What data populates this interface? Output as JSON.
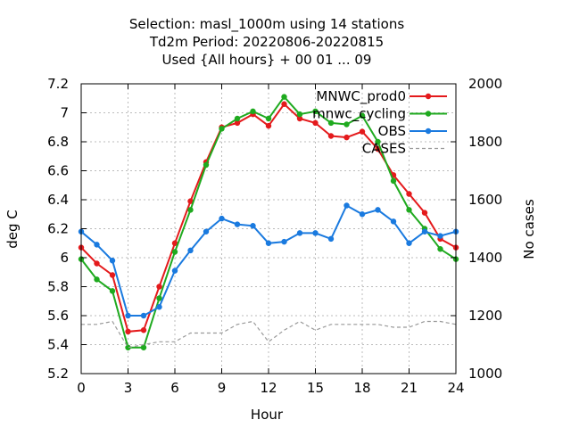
{
  "title_lines": [
    "Selection: masl_1000m using    14 stations",
    "Td2m   Period: 20220806-20220815",
    "Used {All hours} + 00 01 ... 09"
  ],
  "chart_data": {
    "type": "line",
    "title": "Selection: masl_1000m using    14 stations / Td2m   Period: 20220806-20220815 / Used {All hours} + 00 01 ... 09",
    "xlabel": "Hour",
    "ylabel": "deg C",
    "y2label": "No cases",
    "xlim": [
      0,
      24
    ],
    "ylim": [
      5.2,
      7.2
    ],
    "y2lim": [
      1000,
      2000
    ],
    "xticks": [
      "0",
      "3",
      "6",
      "9",
      "12",
      "15",
      "18",
      "21",
      "24"
    ],
    "yticks": [
      "5.2",
      "5.4",
      "5.6",
      "5.8",
      "6",
      "6.2",
      "6.4",
      "6.6",
      "6.8",
      "7",
      "7.2"
    ],
    "y2ticks": [
      "1000",
      "1200",
      "1400",
      "1600",
      "1800",
      "2000"
    ],
    "grid": true,
    "legend_position": "top-right",
    "x": [
      0,
      1,
      2,
      3,
      4,
      5,
      6,
      7,
      8,
      9,
      10,
      11,
      12,
      13,
      14,
      15,
      16,
      17,
      18,
      19,
      20,
      21,
      22,
      23,
      24
    ],
    "series": [
      {
        "name": "MNWC_prod0",
        "axis": "left",
        "color": "#e41a1c",
        "style": "solid",
        "marker": true,
        "values": [
          6.07,
          5.96,
          5.88,
          5.49,
          5.5,
          5.8,
          6.1,
          6.39,
          6.66,
          6.9,
          6.93,
          6.99,
          6.91,
          7.06,
          6.96,
          6.93,
          6.84,
          6.83,
          6.87,
          6.75,
          6.57,
          6.44,
          6.31,
          6.13,
          6.07
        ]
      },
      {
        "name": "mnwc_cycling",
        "axis": "left",
        "color": "#1faa1f",
        "style": "solid",
        "marker": true,
        "values": [
          5.99,
          5.85,
          5.77,
          5.38,
          5.38,
          5.72,
          6.04,
          6.33,
          6.64,
          6.89,
          6.96,
          7.01,
          6.96,
          7.11,
          6.99,
          7.01,
          6.93,
          6.92,
          6.98,
          6.8,
          6.53,
          6.33,
          6.2,
          6.06,
          5.99
        ]
      },
      {
        "name": "OBS",
        "axis": "left",
        "color": "#1a7adf",
        "style": "solid",
        "marker": true,
        "values": [
          6.18,
          6.09,
          5.98,
          5.6,
          5.6,
          5.66,
          5.91,
          6.05,
          6.18,
          6.27,
          6.23,
          6.22,
          6.1,
          6.11,
          6.17,
          6.17,
          6.13,
          6.36,
          6.3,
          6.33,
          6.25,
          6.1,
          6.18,
          6.15,
          6.18
        ]
      },
      {
        "name": "CASES",
        "axis": "right",
        "color": "#999999",
        "style": "dashed",
        "marker": false,
        "values": [
          1170,
          1170,
          1180,
          1090,
          1100,
          1110,
          1110,
          1140,
          1140,
          1140,
          1170,
          1180,
          1110,
          1150,
          1180,
          1150,
          1170,
          1170,
          1170,
          1170,
          1160,
          1160,
          1180,
          1180,
          1170
        ]
      }
    ]
  }
}
